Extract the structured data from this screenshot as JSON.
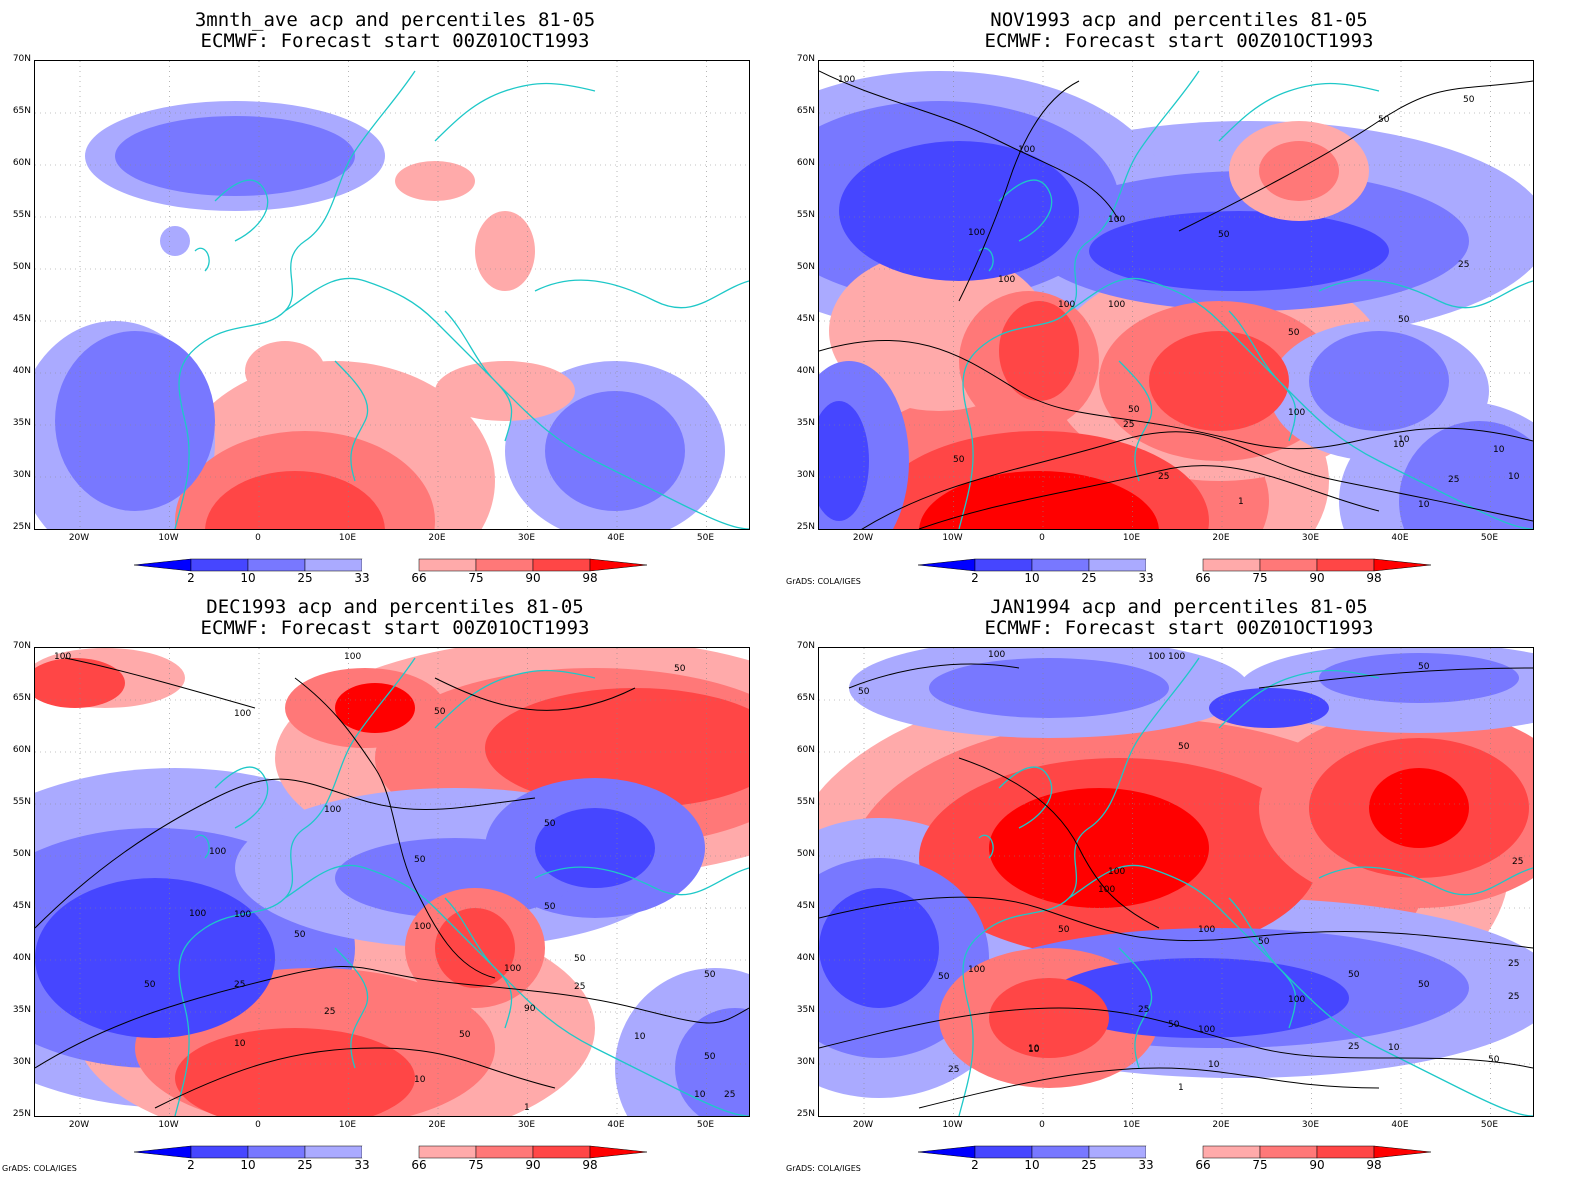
{
  "panels": [
    {
      "id": "p1",
      "title1": "3mnth_ave acp and percentiles 81-05",
      "title2": "ECMWF: Forecast start 00Z01OCT1993",
      "credit": ""
    },
    {
      "id": "p2",
      "title1": "NOV1993 acp and percentiles 81-05",
      "title2": "ECMWF: Forecast start 00Z01OCT1993",
      "credit": "GrADS: COLA/IGES"
    },
    {
      "id": "p3",
      "title1": "DEC1993 acp and percentiles 81-05",
      "title2": "ECMWF: Forecast start 00Z01OCT1993",
      "credit": "GrADS: COLA/IGES"
    },
    {
      "id": "p4",
      "title1": "JAN1994 acp and percentiles 81-05",
      "title2": "ECMWF: Forecast start 00Z01OCT1993",
      "credit": "GrADS: COLA/IGES"
    }
  ],
  "axes": {
    "lat_labels": [
      "70N",
      "65N",
      "60N",
      "55N",
      "50N",
      "45N",
      "40N",
      "35N",
      "30N",
      "25N"
    ],
    "lon_labels": [
      "20W",
      "10W",
      "0",
      "10E",
      "20E",
      "30E",
      "40E",
      "50E"
    ]
  },
  "colorbar": {
    "labels": [
      "2",
      "10",
      "25",
      "33",
      "66",
      "75",
      "90",
      "98"
    ],
    "colors": [
      "#0000ff",
      "#4646ff",
      "#7878ff",
      "#aaaaff",
      "#ffffff",
      "#ffaaaa",
      "#ff7878",
      "#ff4646",
      "#ff0000"
    ]
  },
  "contour_labels": {
    "p2": [
      "100",
      "50",
      "50",
      "100",
      "100",
      "100",
      "50",
      "25",
      "100",
      "100",
      "100",
      "50",
      "50",
      "25",
      "50",
      "10",
      "100",
      "50",
      "25",
      "10",
      "10",
      "25",
      "1",
      "10",
      "10"
    ],
    "p3": [
      "100",
      "100",
      "100",
      "50",
      "50",
      "100",
      "50",
      "50",
      "100",
      "100",
      "100",
      "50",
      "25",
      "50",
      "100",
      "50",
      "50",
      "100",
      "90",
      "10",
      "25",
      "50",
      "10",
      "10",
      "25",
      "1",
      "10",
      "50",
      "25",
      "50"
    ],
    "p4": [
      "100",
      "100",
      "100",
      "50",
      "50",
      "100",
      "50",
      "25",
      "100",
      "100",
      "100",
      "50",
      "50",
      "50",
      "100",
      "100",
      "50",
      "50",
      "25",
      "50",
      "25",
      "50",
      "10",
      "10",
      "10",
      "25",
      "1",
      "10",
      "25",
      "25"
    ]
  }
}
